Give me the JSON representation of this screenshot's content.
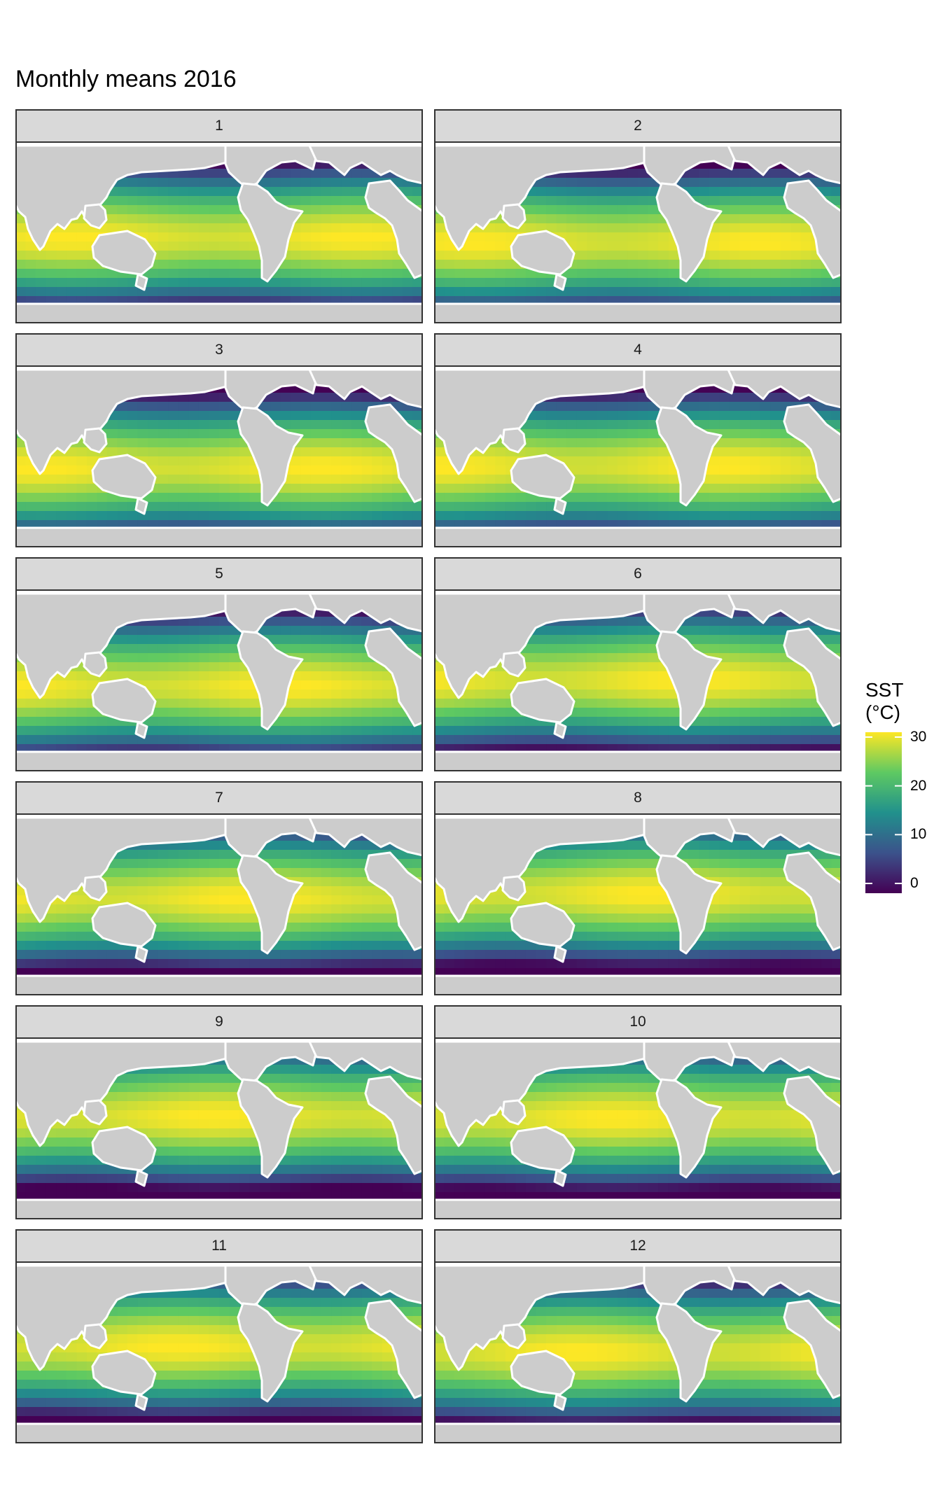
{
  "title": "Monthly means 2016",
  "panels": [
    "1",
    "2",
    "3",
    "4",
    "5",
    "6",
    "7",
    "8",
    "9",
    "10",
    "11",
    "12"
  ],
  "legend": {
    "title_line1": "SST",
    "title_line2": "(°C)",
    "ticks": [
      {
        "value": 30,
        "label": "30"
      },
      {
        "value": 20,
        "label": "20"
      },
      {
        "value": 10,
        "label": "10"
      },
      {
        "value": 0,
        "label": "0"
      }
    ],
    "range": [
      -2,
      31
    ],
    "colors": [
      "#440154",
      "#3b528b",
      "#21918c",
      "#5ec962",
      "#fde725"
    ]
  },
  "colors": {
    "land": "#cccccc",
    "no_data": "#ffffff",
    "strip_fill": "#d9d9d9",
    "panel_border": "#333333"
  }
}
